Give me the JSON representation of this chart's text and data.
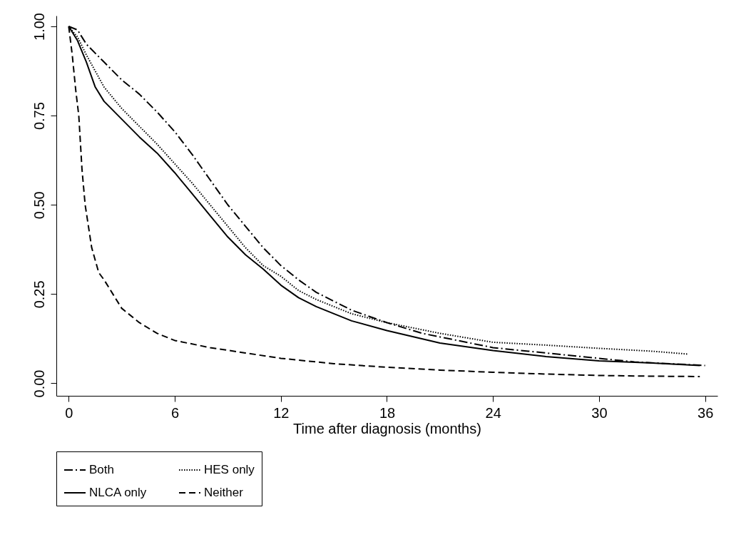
{
  "chart_data": {
    "type": "line",
    "xlabel": "Time after diagnosis (months)",
    "xlim": [
      -0.7,
      36.7
    ],
    "xticks": [
      0,
      6,
      12,
      18,
      24,
      30,
      36
    ],
    "ylim": [
      -0.035,
      1.03
    ],
    "yticks": [
      {
        "value": 0,
        "label": "0.00"
      },
      {
        "value": 0.25,
        "label": "0.25"
      },
      {
        "value": 0.5,
        "label": "0.50"
      },
      {
        "value": 0.75,
        "label": "0.75"
      },
      {
        "value": 1,
        "label": "1.00"
      }
    ],
    "grid": false,
    "legend": "bottom",
    "marker": "none",
    "series": [
      {
        "name": "Both",
        "color": "#000000",
        "line_style": "dashdot",
        "x": [
          0,
          0.5,
          1,
          2,
          3,
          4,
          5,
          6,
          7,
          8,
          9,
          10,
          11,
          12,
          13,
          14,
          15,
          16,
          18,
          20,
          22,
          24,
          26,
          28,
          30,
          32,
          34,
          36
        ],
        "values": [
          1,
          0.99,
          0.95,
          0.9,
          0.85,
          0.81,
          0.76,
          0.705,
          0.64,
          0.57,
          0.5,
          0.44,
          0.38,
          0.33,
          0.29,
          0.255,
          0.23,
          0.205,
          0.17,
          0.14,
          0.12,
          0.1,
          0.09,
          0.08,
          0.07,
          0.06,
          0.055,
          0.05
        ]
      },
      {
        "name": "HES only",
        "color": "#000000",
        "line_style": "dotted",
        "x": [
          0,
          0.5,
          1,
          2,
          3,
          4,
          5,
          6,
          7,
          8,
          9,
          10,
          11,
          12,
          13,
          14,
          15,
          16,
          18,
          21,
          24,
          27,
          30,
          33,
          35
        ],
        "values": [
          1,
          0.97,
          0.92,
          0.83,
          0.77,
          0.72,
          0.67,
          0.615,
          0.56,
          0.5,
          0.44,
          0.38,
          0.33,
          0.3,
          0.26,
          0.235,
          0.215,
          0.195,
          0.17,
          0.14,
          0.115,
          0.107,
          0.098,
          0.09,
          0.082
        ]
      },
      {
        "name": "NLCA only",
        "color": "#000000",
        "line_style": "solid",
        "x": [
          0,
          0.5,
          1,
          1.5,
          2,
          3,
          4,
          5,
          6,
          7,
          8,
          9,
          10,
          11,
          12,
          13,
          14,
          15,
          16,
          18,
          21,
          24,
          27,
          30,
          33,
          35.7
        ],
        "values": [
          1,
          0.96,
          0.9,
          0.83,
          0.79,
          0.74,
          0.69,
          0.645,
          0.59,
          0.53,
          0.47,
          0.41,
          0.36,
          0.32,
          0.275,
          0.24,
          0.215,
          0.195,
          0.175,
          0.148,
          0.113,
          0.092,
          0.075,
          0.063,
          0.057,
          0.05
        ]
      },
      {
        "name": "Neither",
        "color": "#000000",
        "line_style": "dashed",
        "x": [
          0,
          0.2,
          0.4,
          0.57,
          0.75,
          0.93,
          1.3,
          1.7,
          2,
          2.5,
          3,
          4,
          5,
          6,
          8,
          10,
          12,
          15,
          18,
          21,
          24,
          27,
          30,
          33,
          35.7
        ],
        "values": [
          1,
          0.92,
          0.82,
          0.75,
          0.6,
          0.5,
          0.38,
          0.31,
          0.29,
          0.25,
          0.21,
          0.17,
          0.14,
          0.12,
          0.1,
          0.085,
          0.07,
          0.055,
          0.045,
          0.037,
          0.031,
          0.026,
          0.022,
          0.02,
          0.019
        ]
      }
    ]
  }
}
